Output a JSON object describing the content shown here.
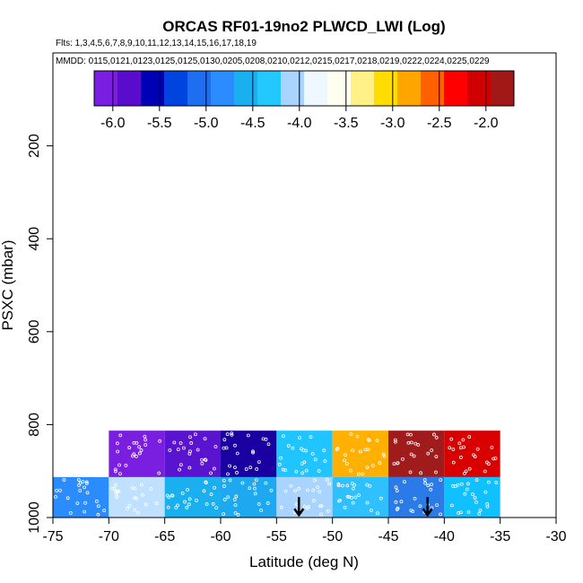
{
  "chart_data": {
    "type": "heatmap",
    "title": "ORCAS RF01-19no2 PLWCD_LWI (Log)",
    "flights_label": "Flts: 1,3,4,5,6,7,8,9,10,11,12,13,14,15,16,17,18,19",
    "dates_label": "MMDD: 0115,0121,0123,0125,0125,0130,0205,0208,0210,0212,0215,0217,0218,0219,0222,0224,0225,0229",
    "xlabel": "Latitude (deg N)",
    "ylabel": "PSXC (mbar)",
    "xlim": [
      -75,
      -30
    ],
    "ylim": [
      1000,
      0
    ],
    "x_ticks": [
      -75,
      -70,
      -65,
      -60,
      -55,
      -50,
      -45,
      -40,
      -35,
      -30
    ],
    "y_ticks": [
      200,
      400,
      600,
      800,
      1000
    ],
    "colorbar": {
      "range": [
        -6.2,
        -1.7
      ],
      "ticks": [
        -6.0,
        -5.5,
        -5.0,
        -4.5,
        -4.0,
        -3.5,
        -3.0,
        -2.5,
        -2.0
      ],
      "tick_labels": [
        "-6.0",
        "-5.5",
        "-5.0",
        "-4.5",
        "-4.0",
        "-3.5",
        "-3.0",
        "-2.5",
        "-2.0"
      ],
      "colors": [
        "#7a1ee0",
        "#5a0ccc",
        "#0000b4",
        "#0044e0",
        "#1e6ef0",
        "#2a8cff",
        "#1ab0f0",
        "#22c8ff",
        "#a8d4ff",
        "#f0f8ff",
        "#fffff0",
        "#fff088",
        "#ffdd00",
        "#ffa500",
        "#ff6000",
        "#ff0000",
        "#d00000",
        "#a01818"
      ]
    },
    "cells": [
      {
        "lat": [
          -70,
          -65
        ],
        "p": [
          813,
          913
        ],
        "value": -5.8,
        "color": "#7a1ee0"
      },
      {
        "lat": [
          -65,
          -60
        ],
        "p": [
          813,
          913
        ],
        "value": -5.7,
        "color": "#5a14d0"
      },
      {
        "lat": [
          -60,
          -55
        ],
        "p": [
          813,
          913
        ],
        "value": -5.4,
        "color": "#1a00a0"
      },
      {
        "lat": [
          -55,
          -50
        ],
        "p": [
          813,
          913
        ],
        "value": -4.5,
        "color": "#20c4ff"
      },
      {
        "lat": [
          -50,
          -45
        ],
        "p": [
          813,
          913
        ],
        "value": -3.0,
        "color": "#ffb000"
      },
      {
        "lat": [
          -45,
          -40
        ],
        "p": [
          813,
          913
        ],
        "value": -1.9,
        "color": "#a01c1c"
      },
      {
        "lat": [
          -40,
          -35
        ],
        "p": [
          813,
          913
        ],
        "value": -2.1,
        "color": "#d80000"
      },
      {
        "lat": [
          -75,
          -70
        ],
        "p": [
          913,
          1000
        ],
        "value": -4.9,
        "color": "#2a8cff"
      },
      {
        "lat": [
          -70,
          -65
        ],
        "p": [
          913,
          1000
        ],
        "value": -4.1,
        "color": "#c0e0ff"
      },
      {
        "lat": [
          -65,
          -60
        ],
        "p": [
          913,
          1000
        ],
        "value": -4.6,
        "color": "#1ab0f0"
      },
      {
        "lat": [
          -60,
          -55
        ],
        "p": [
          913,
          1000
        ],
        "value": -4.5,
        "color": "#1ea8f0"
      },
      {
        "lat": [
          -55,
          -50
        ],
        "p": [
          913,
          1000
        ],
        "value": -4.2,
        "color": "#a8d4ff"
      },
      {
        "lat": [
          -50,
          -45
        ],
        "p": [
          913,
          1000
        ],
        "value": -4.4,
        "color": "#2ec0ff"
      },
      {
        "lat": [
          -45,
          -40
        ],
        "p": [
          913,
          1000
        ],
        "value": -5.0,
        "color": "#2a7ae8"
      },
      {
        "lat": [
          -40,
          -35
        ],
        "p": [
          913,
          1000
        ],
        "value": -4.5,
        "color": "#10c0ff"
      }
    ],
    "arrows": [
      {
        "lat": -53,
        "p": 985
      },
      {
        "lat": -41.5,
        "p": 985
      }
    ],
    "grid": false
  }
}
